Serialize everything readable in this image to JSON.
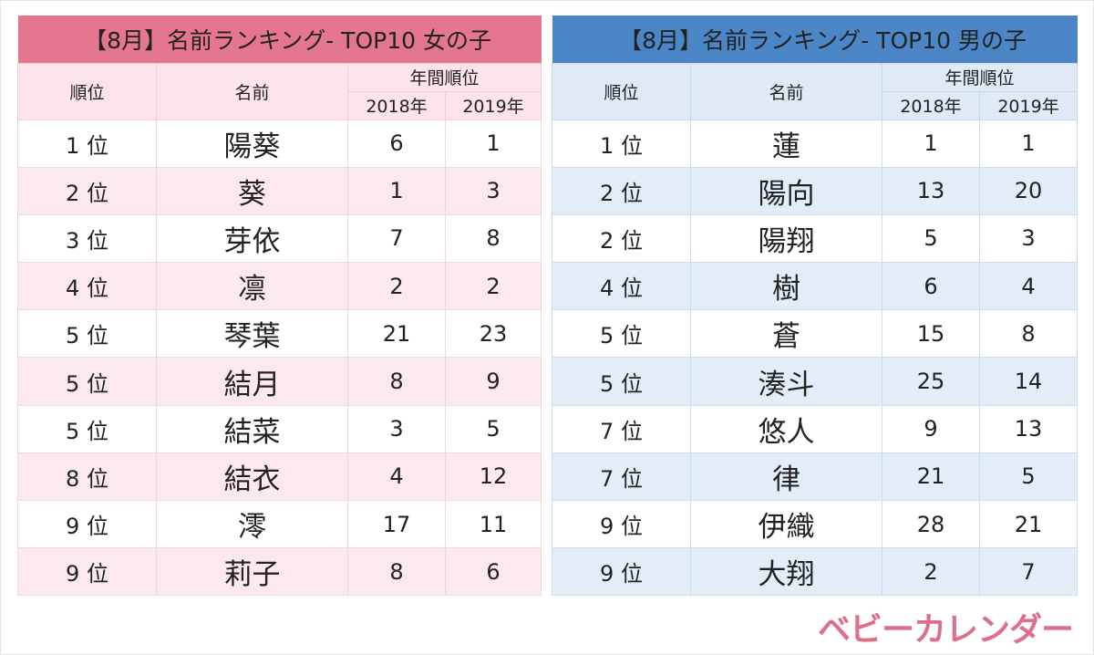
{
  "girls": {
    "title": "【8月】名前ランキング- TOP10 女の子",
    "headers": {
      "rank": "順位",
      "name": "名前",
      "annual": "年間順位",
      "y2018": "2018年",
      "y2019": "2019年"
    },
    "rows": [
      {
        "rank": "1 位",
        "name": "陽葵",
        "y2018": "6",
        "y2019": "1"
      },
      {
        "rank": "2 位",
        "name": "葵",
        "y2018": "1",
        "y2019": "3"
      },
      {
        "rank": "3 位",
        "name": "芽依",
        "y2018": "7",
        "y2019": "8"
      },
      {
        "rank": "4 位",
        "name": "凛",
        "y2018": "2",
        "y2019": "2"
      },
      {
        "rank": "5 位",
        "name": "琴葉",
        "y2018": "21",
        "y2019": "23"
      },
      {
        "rank": "5 位",
        "name": "結月",
        "y2018": "8",
        "y2019": "9"
      },
      {
        "rank": "5 位",
        "name": "結菜",
        "y2018": "3",
        "y2019": "5"
      },
      {
        "rank": "8 位",
        "name": "結衣",
        "y2018": "4",
        "y2019": "12"
      },
      {
        "rank": "9 位",
        "name": "澪",
        "y2018": "17",
        "y2019": "11"
      },
      {
        "rank": "9 位",
        "name": "莉子",
        "y2018": "8",
        "y2019": "6"
      }
    ]
  },
  "boys": {
    "title": "【8月】名前ランキング- TOP10 男の子",
    "headers": {
      "rank": "順位",
      "name": "名前",
      "annual": "年間順位",
      "y2018": "2018年",
      "y2019": "2019年"
    },
    "rows": [
      {
        "rank": "1 位",
        "name": "蓮",
        "y2018": "1",
        "y2019": "1"
      },
      {
        "rank": "2 位",
        "name": "陽向",
        "y2018": "13",
        "y2019": "20"
      },
      {
        "rank": "2 位",
        "name": "陽翔",
        "y2018": "5",
        "y2019": "3"
      },
      {
        "rank": "4 位",
        "name": "樹",
        "y2018": "6",
        "y2019": "4"
      },
      {
        "rank": "5 位",
        "name": "蒼",
        "y2018": "15",
        "y2019": "8"
      },
      {
        "rank": "5 位",
        "name": "湊斗",
        "y2018": "25",
        "y2019": "14"
      },
      {
        "rank": "7 位",
        "name": "悠人",
        "y2018": "9",
        "y2019": "13"
      },
      {
        "rank": "7 位",
        "name": "律",
        "y2018": "21",
        "y2019": "5"
      },
      {
        "rank": "9 位",
        "name": "伊織",
        "y2018": "28",
        "y2019": "21"
      },
      {
        "rank": "9 位",
        "name": "大翔",
        "y2018": "2",
        "y2019": "7"
      }
    ]
  },
  "logo": "ベビーカレンダー",
  "colors": {
    "pink": "#e57690",
    "blue": "#4b86c6"
  }
}
